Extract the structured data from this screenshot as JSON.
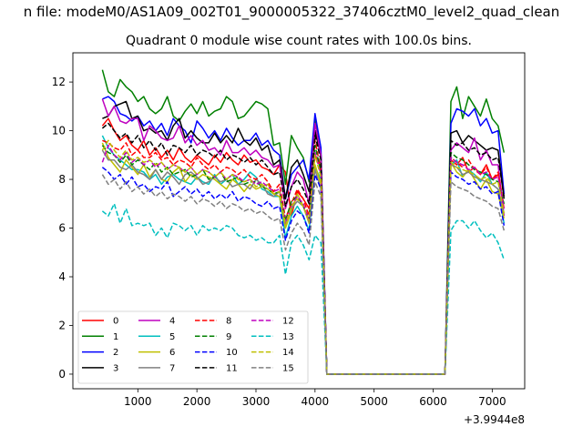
{
  "suptitle": "n file: modeM0/AS1A09_002T01_9000005322_37406cztM0_level2_quad_clean",
  "chart_data": {
    "type": "line",
    "title": "Quadrant 0 module wise count rates with 100.0s bins.",
    "xlabel": "",
    "ylabel": "",
    "x_offset_label": "+3.9944e8",
    "xlim": [
      -100,
      7550
    ],
    "ylim": [
      -0.6,
      13.2
    ],
    "xticks": [
      1000,
      2000,
      3000,
      4000,
      5000,
      6000,
      7000
    ],
    "xtick_labels": [
      "1000",
      "2000",
      "3000",
      "4000",
      "5000",
      "6000",
      "7000"
    ],
    "yticks": [
      0,
      2,
      4,
      6,
      8,
      10,
      12
    ],
    "ytick_labels": [
      "0",
      "2",
      "4",
      "6",
      "8",
      "10",
      "12"
    ],
    "grid": false,
    "legend_position": "lower-left",
    "legend_columns": 4,
    "x_segment1": [
      400,
      500,
      600,
      700,
      800,
      900,
      1000,
      1100,
      1200,
      1300,
      1400,
      1500,
      1600,
      1700,
      1800,
      1900,
      2000,
      2100,
      2200,
      2300,
      2400,
      2500,
      2600,
      2700,
      2800,
      2900,
      3000,
      3100,
      3200,
      3300,
      3400,
      3500,
      3600,
      3700,
      3800,
      3900,
      4000,
      4100
    ],
    "gap_segment": {
      "x": [
        4200,
        6200
      ],
      "value": 0
    },
    "x_segment2": [
      6300,
      6400,
      6500,
      6600,
      6700,
      6800,
      6900,
      7000,
      7100,
      7200
    ],
    "series": [
      {
        "name": "0",
        "color": "#ff0000",
        "dash": "solid",
        "values1": [
          10.2,
          10.5,
          10.0,
          9.6,
          9.8,
          9.4,
          9.2,
          9.6,
          9.0,
          9.3,
          8.9,
          9.2,
          8.8,
          9.3,
          8.9,
          8.7,
          9.0,
          8.8,
          8.6,
          9.0,
          8.7,
          9.1,
          8.8,
          8.6,
          9.0,
          8.7,
          8.8,
          8.5,
          8.4,
          8.2,
          8.6,
          8.3,
          6.5,
          7.5,
          7.2,
          6.8,
          9.0,
          8.5
        ],
        "values2": [
          8.8,
          8.6,
          8.9,
          8.3,
          8.5,
          8.2,
          8.6,
          8.0,
          8.2,
          6.8
        ]
      },
      {
        "name": "1",
        "color": "#008000",
        "dash": "solid",
        "values1": [
          12.5,
          11.6,
          11.4,
          12.1,
          11.8,
          11.6,
          11.2,
          11.4,
          10.9,
          10.7,
          10.9,
          11.4,
          10.6,
          10.4,
          10.8,
          11.1,
          10.7,
          11.2,
          10.6,
          10.8,
          10.9,
          11.4,
          11.2,
          10.5,
          10.6,
          10.9,
          11.2,
          11.1,
          10.9,
          9.4,
          9.5,
          7.8,
          9.8,
          9.3,
          8.9,
          7.9,
          10.5,
          8.9
        ],
        "values2": [
          11.2,
          11.8,
          10.5,
          11.4,
          11.0,
          10.6,
          11.3,
          10.5,
          10.2,
          9.1
        ]
      },
      {
        "name": "2",
        "color": "#0000ff",
        "dash": "solid",
        "values1": [
          11.3,
          11.4,
          11.2,
          10.7,
          10.6,
          10.4,
          10.6,
          10.2,
          10.4,
          10.0,
          10.3,
          9.8,
          10.5,
          10.2,
          10.0,
          9.5,
          10.4,
          10.1,
          9.7,
          10.0,
          9.6,
          10.1,
          9.7,
          9.4,
          9.6,
          9.6,
          9.9,
          9.4,
          9.6,
          9.2,
          9.0,
          7.2,
          8.2,
          8.5,
          8.8,
          8.0,
          10.7,
          9.3
        ],
        "values2": [
          10.3,
          10.9,
          10.8,
          10.6,
          10.9,
          10.2,
          10.5,
          9.9,
          10.0,
          7.4
        ]
      },
      {
        "name": "3",
        "color": "#000000",
        "dash": "solid",
        "values1": [
          10.5,
          10.6,
          11.0,
          11.1,
          11.2,
          10.5,
          10.6,
          10.0,
          10.1,
          9.9,
          10.0,
          9.6,
          10.2,
          10.5,
          9.7,
          10.0,
          9.7,
          9.5,
          9.5,
          9.9,
          9.5,
          9.8,
          9.5,
          10.1,
          9.6,
          9.4,
          9.7,
          9.2,
          9.4,
          8.6,
          8.8,
          7.2,
          8.5,
          8.8,
          8.2,
          7.5,
          10.0,
          9.0
        ],
        "values2": [
          9.9,
          10.0,
          9.5,
          9.8,
          9.6,
          9.4,
          9.2,
          9.3,
          9.2,
          7.2
        ]
      },
      {
        "name": "4",
        "color": "#bf00bf",
        "dash": "solid",
        "values1": [
          11.3,
          10.6,
          11.0,
          10.4,
          10.3,
          10.5,
          10.5,
          9.6,
          10.2,
          10.0,
          9.7,
          9.6,
          9.7,
          10.2,
          9.5,
          9.8,
          9.4,
          9.6,
          9.2,
          9.3,
          9.0,
          9.6,
          9.1,
          9.1,
          9.3,
          9.0,
          9.2,
          8.9,
          8.8,
          8.5,
          8.6,
          6.8,
          7.7,
          8.3,
          8.0,
          7.0,
          10.3,
          9.0
        ],
        "values2": [
          9.2,
          9.5,
          9.3,
          9.1,
          9.7,
          8.8,
          9.2,
          8.6,
          8.6,
          6.5
        ]
      },
      {
        "name": "5",
        "color": "#00bfbf",
        "dash": "solid",
        "values1": [
          9.8,
          9.3,
          9.0,
          8.8,
          8.6,
          8.4,
          8.4,
          8.3,
          8.0,
          8.2,
          7.8,
          8.1,
          8.2,
          8.0,
          7.9,
          7.8,
          8.1,
          7.9,
          7.8,
          8.2,
          7.8,
          8.0,
          8.2,
          7.8,
          8.0,
          8.3,
          8.1,
          7.6,
          7.5,
          7.3,
          7.3,
          5.6,
          6.5,
          6.9,
          6.5,
          5.9,
          8.5,
          8.0
        ],
        "values2": [
          8.6,
          8.8,
          8.1,
          8.4,
          8.2,
          7.9,
          8.3,
          7.8,
          7.6,
          6.2
        ]
      },
      {
        "name": "6",
        "color": "#bfbf00",
        "dash": "solid",
        "values1": [
          9.5,
          8.9,
          8.6,
          8.3,
          8.8,
          8.5,
          8.2,
          8.6,
          8.1,
          8.4,
          8.0,
          7.9,
          8.3,
          8.5,
          7.9,
          8.2,
          8.0,
          8.2,
          8.1,
          8.0,
          7.8,
          7.6,
          8.0,
          7.8,
          7.5,
          7.8,
          7.6,
          7.7,
          7.8,
          7.4,
          7.3,
          6.0,
          6.7,
          7.4,
          6.9,
          6.3,
          8.6,
          7.8
        ],
        "values2": [
          8.7,
          8.3,
          8.1,
          8.4,
          8.0,
          7.6,
          8.0,
          7.5,
          7.4,
          6.4
        ]
      },
      {
        "name": "7",
        "color": "#808080",
        "dash": "solid",
        "values1": [
          9.2,
          8.8,
          8.8,
          8.5,
          8.4,
          8.6,
          8.3,
          8.2,
          8.0,
          8.4,
          8.0,
          8.3,
          8.1,
          7.8,
          8.2,
          8.3,
          8.1,
          7.8,
          7.9,
          8.1,
          7.9,
          8.0,
          7.7,
          7.8,
          7.8,
          7.6,
          8.0,
          7.8,
          7.4,
          7.3,
          7.5,
          6.2,
          6.8,
          7.1,
          6.9,
          6.2,
          8.4,
          7.6
        ],
        "values2": [
          8.6,
          8.5,
          8.2,
          8.3,
          8.1,
          8.0,
          7.9,
          7.8,
          7.6,
          6.6
        ]
      },
      {
        "name": "8",
        "color": "#ff0000",
        "dash": "dashed",
        "values1": [
          9.6,
          9.5,
          9.3,
          9.2,
          9.5,
          9.0,
          9.2,
          8.9,
          8.9,
          9.1,
          8.8,
          8.9,
          8.6,
          8.8,
          8.7,
          8.5,
          8.9,
          8.6,
          8.4,
          8.6,
          8.3,
          8.5,
          8.4,
          8.2,
          8.4,
          8.1,
          8.0,
          8.2,
          7.9,
          7.5,
          7.8,
          6.4,
          7.0,
          7.6,
          7.2,
          6.5,
          9.6,
          8.4
        ],
        "values2": [
          8.9,
          8.7,
          8.5,
          8.8,
          8.4,
          8.2,
          8.5,
          8.0,
          8.3,
          6.9
        ]
      },
      {
        "name": "9",
        "color": "#008000",
        "dash": "dashed",
        "values1": [
          9.4,
          9.1,
          9.0,
          8.7,
          9.0,
          8.6,
          8.8,
          8.6,
          8.4,
          8.7,
          8.3,
          8.5,
          8.2,
          8.3,
          8.4,
          8.1,
          8.2,
          8.4,
          8.0,
          8.1,
          8.3,
          7.9,
          8.0,
          8.1,
          7.8,
          7.9,
          7.9,
          7.7,
          7.6,
          7.4,
          7.5,
          6.3,
          7.1,
          7.3,
          6.9,
          6.4,
          9.4,
          8.3
        ],
        "values2": [
          9.1,
          8.9,
          8.8,
          8.6,
          8.4,
          8.3,
          8.2,
          8.0,
          7.9,
          7.0
        ]
      },
      {
        "name": "10",
        "color": "#0000ff",
        "dash": "dashed",
        "values1": [
          8.5,
          8.3,
          8.0,
          8.2,
          7.8,
          8.1,
          7.7,
          7.8,
          7.5,
          7.7,
          7.6,
          7.9,
          7.3,
          7.5,
          7.7,
          7.4,
          7.6,
          7.3,
          7.5,
          7.2,
          7.4,
          7.2,
          7.5,
          7.1,
          7.3,
          7.2,
          7.0,
          6.9,
          7.1,
          6.8,
          6.9,
          5.5,
          6.3,
          6.7,
          6.5,
          5.8,
          8.2,
          7.6
        ],
        "values2": [
          8.3,
          8.1,
          8.0,
          7.8,
          7.9,
          7.6,
          7.7,
          7.4,
          7.5,
          6.1
        ]
      },
      {
        "name": "11",
        "color": "#000000",
        "dash": "dashed",
        "values1": [
          10.1,
          10.3,
          10.0,
          9.7,
          9.9,
          9.5,
          9.8,
          9.3,
          9.6,
          9.2,
          9.5,
          9.0,
          9.4,
          9.3,
          9.1,
          9.4,
          9.0,
          9.2,
          9.1,
          8.9,
          9.2,
          8.8,
          9.0,
          8.9,
          8.7,
          8.9,
          8.6,
          8.8,
          8.5,
          8.2,
          8.3,
          6.9,
          7.7,
          8.0,
          7.6,
          7.0,
          9.8,
          8.8
        ],
        "values2": [
          9.6,
          9.4,
          9.5,
          9.2,
          9.3,
          9.0,
          9.1,
          8.8,
          8.9,
          7.3
        ]
      },
      {
        "name": "12",
        "color": "#bf00bf",
        "dash": "dashed",
        "values1": [
          8.7,
          9.4,
          9.0,
          8.8,
          9.1,
          8.7,
          8.9,
          8.6,
          8.8,
          8.5,
          8.7,
          8.4,
          8.6,
          8.5,
          8.3,
          8.5,
          8.2,
          8.4,
          8.3,
          8.1,
          8.3,
          8.0,
          8.2,
          8.1,
          7.9,
          8.0,
          7.8,
          7.9,
          7.7,
          7.5,
          7.6,
          6.2,
          6.9,
          7.3,
          7.0,
          6.3,
          9.1,
          8.2
        ],
        "values2": [
          8.9,
          8.7,
          8.6,
          8.4,
          8.5,
          8.2,
          8.3,
          8.0,
          8.1,
          6.8
        ]
      },
      {
        "name": "13",
        "color": "#00bfbf",
        "dash": "dashed",
        "values1": [
          6.7,
          6.5,
          7.0,
          6.2,
          6.8,
          6.1,
          6.2,
          6.1,
          6.2,
          5.7,
          6.0,
          5.6,
          6.2,
          6.1,
          5.9,
          6.1,
          5.7,
          6.1,
          5.9,
          6.0,
          5.9,
          6.1,
          6.0,
          5.7,
          5.6,
          5.7,
          5.5,
          5.6,
          5.4,
          5.4,
          5.7,
          4.1,
          5.4,
          5.7,
          5.3,
          4.7,
          5.7,
          5.4
        ],
        "values2": [
          5.9,
          6.3,
          6.3,
          6.0,
          6.3,
          5.9,
          5.6,
          5.8,
          5.4,
          4.7
        ]
      },
      {
        "name": "14",
        "color": "#bfbf00",
        "dash": "dashed",
        "values1": [
          9.2,
          9.6,
          9.2,
          8.9,
          9.2,
          8.8,
          8.9,
          8.7,
          8.8,
          8.6,
          8.7,
          8.4,
          8.6,
          8.5,
          8.3,
          8.5,
          8.2,
          8.4,
          8.3,
          8.1,
          8.3,
          8.0,
          8.2,
          8.0,
          7.9,
          8.0,
          7.7,
          7.8,
          7.6,
          7.4,
          7.5,
          6.1,
          6.9,
          7.2,
          6.9,
          6.2,
          9.0,
          8.1
        ],
        "values2": [
          8.7,
          8.5,
          8.4,
          8.3,
          8.2,
          8.0,
          8.1,
          7.8,
          7.9,
          6.6
        ]
      },
      {
        "name": "15",
        "color": "#808080",
        "dash": "dashed",
        "values1": [
          8.2,
          7.8,
          8.0,
          7.6,
          7.9,
          7.5,
          7.7,
          7.4,
          7.6,
          7.3,
          7.5,
          7.2,
          7.4,
          7.3,
          7.1,
          7.3,
          7.0,
          7.2,
          7.1,
          6.9,
          7.1,
          6.8,
          7.0,
          6.9,
          6.7,
          6.8,
          6.6,
          6.7,
          6.5,
          6.3,
          6.4,
          5.1,
          5.8,
          6.2,
          5.9,
          5.3,
          7.9,
          7.3
        ],
        "values2": [
          7.9,
          7.7,
          7.6,
          7.5,
          7.3,
          7.2,
          7.1,
          6.9,
          6.8,
          5.9
        ]
      }
    ]
  }
}
